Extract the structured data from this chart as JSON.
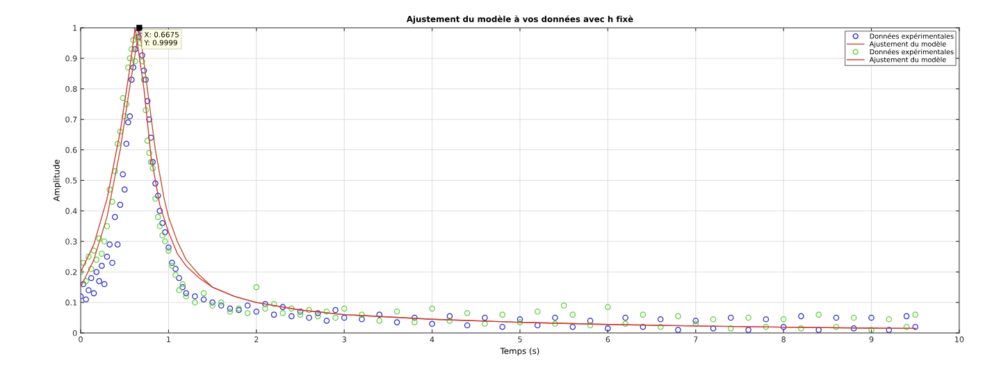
{
  "chart_data": {
    "type": "scatter",
    "title": "Ajustement du modèle à vos données avec h fixè",
    "xlabel": "Temps (s)",
    "ylabel": "Amplitude",
    "xlim": [
      0,
      10
    ],
    "ylim": [
      0,
      1
    ],
    "xticks": [
      0,
      1,
      2,
      3,
      4,
      5,
      6,
      7,
      8,
      9,
      10
    ],
    "yticks": [
      0,
      0.1,
      0.2,
      0.3,
      0.4,
      0.5,
      0.6,
      0.7,
      0.8,
      0.9,
      1
    ],
    "grid": true,
    "legend": "top right",
    "annotations": [
      {
        "text": "X: 0.6675\nY: 0.9999",
        "x": 0.6675,
        "y": 0.9999
      }
    ],
    "series": [
      {
        "name": "Données expérimentales",
        "marker": "circle",
        "color": "#2a2ad0",
        "x": [
          0.0,
          0.03,
          0.06,
          0.09,
          0.12,
          0.15,
          0.18,
          0.21,
          0.24,
          0.27,
          0.3,
          0.33,
          0.36,
          0.39,
          0.42,
          0.45,
          0.48,
          0.5,
          0.52,
          0.54,
          0.56,
          0.58,
          0.6,
          0.62,
          0.64,
          0.66,
          0.68,
          0.7,
          0.72,
          0.74,
          0.76,
          0.78,
          0.8,
          0.82,
          0.85,
          0.88,
          0.9,
          0.93,
          0.96,
          1.0,
          1.04,
          1.08,
          1.12,
          1.16,
          1.2,
          1.3,
          1.4,
          1.5,
          1.6,
          1.7,
          1.8,
          1.9,
          2.0,
          2.1,
          2.2,
          2.3,
          2.4,
          2.5,
          2.6,
          2.7,
          2.8,
          2.9,
          3.0,
          3.2,
          3.4,
          3.6,
          3.8,
          4.0,
          4.2,
          4.4,
          4.6,
          4.8,
          5.0,
          5.2,
          5.4,
          5.6,
          5.8,
          6.0,
          6.2,
          6.4,
          6.6,
          6.8,
          7.0,
          7.2,
          7.4,
          7.6,
          7.8,
          8.0,
          8.2,
          8.4,
          8.6,
          8.8,
          9.0,
          9.2,
          9.4,
          9.5
        ],
        "values": [
          0.12,
          0.16,
          0.11,
          0.14,
          0.18,
          0.13,
          0.2,
          0.17,
          0.22,
          0.16,
          0.25,
          0.29,
          0.23,
          0.38,
          0.29,
          0.42,
          0.52,
          0.47,
          0.62,
          0.69,
          0.71,
          0.83,
          0.87,
          0.93,
          1.0,
          0.97,
          0.99,
          0.91,
          0.86,
          0.83,
          0.76,
          0.7,
          0.64,
          0.56,
          0.49,
          0.45,
          0.4,
          0.36,
          0.33,
          0.28,
          0.23,
          0.21,
          0.18,
          0.15,
          0.13,
          0.12,
          0.11,
          0.1,
          0.09,
          0.08,
          0.075,
          0.09,
          0.07,
          0.095,
          0.06,
          0.085,
          0.055,
          0.07,
          0.05,
          0.065,
          0.04,
          0.075,
          0.05,
          0.045,
          0.06,
          0.035,
          0.05,
          0.03,
          0.055,
          0.025,
          0.05,
          0.02,
          0.045,
          0.025,
          0.05,
          0.02,
          0.04,
          0.015,
          0.05,
          0.02,
          0.045,
          0.01,
          0.04,
          0.015,
          0.05,
          0.01,
          0.045,
          0.02,
          0.055,
          0.01,
          0.05,
          0.015,
          0.05,
          0.01,
          0.055,
          0.02
        ]
      },
      {
        "name": "Ajustement du modèle",
        "type": "line",
        "marker": "none",
        "color": "#c0502e",
        "x": [
          0,
          0.15,
          0.3,
          0.45,
          0.55,
          0.6675,
          0.75,
          0.85,
          0.95,
          1.0,
          1.1,
          1.2,
          1.35,
          1.5,
          1.75,
          2,
          2.5,
          3,
          4,
          5,
          6,
          7,
          8,
          9,
          9.5
        ],
        "values": [
          0.15,
          0.24,
          0.38,
          0.6,
          0.79,
          1.0,
          0.82,
          0.6,
          0.44,
          0.38,
          0.3,
          0.24,
          0.19,
          0.15,
          0.12,
          0.1,
          0.075,
          0.06,
          0.045,
          0.035,
          0.028,
          0.023,
          0.019,
          0.016,
          0.015
        ]
      },
      {
        "name": "Données expérimentales",
        "marker": "circle",
        "color": "#5ed23c",
        "x": [
          0.0,
          0.03,
          0.06,
          0.09,
          0.12,
          0.15,
          0.18,
          0.21,
          0.24,
          0.27,
          0.3,
          0.33,
          0.36,
          0.39,
          0.42,
          0.45,
          0.48,
          0.5,
          0.52,
          0.54,
          0.56,
          0.58,
          0.6,
          0.62,
          0.64,
          0.68,
          0.7,
          0.72,
          0.74,
          0.76,
          0.78,
          0.8,
          0.82,
          0.85,
          0.88,
          0.9,
          0.93,
          0.96,
          1.0,
          1.04,
          1.08,
          1.12,
          1.16,
          1.2,
          1.3,
          1.4,
          1.5,
          1.6,
          1.7,
          1.8,
          1.9,
          2.0,
          2.1,
          2.2,
          2.3,
          2.4,
          2.5,
          2.6,
          2.7,
          2.8,
          2.9,
          3.0,
          3.2,
          3.4,
          3.6,
          3.8,
          4.0,
          4.2,
          4.4,
          4.6,
          4.8,
          5.0,
          5.2,
          5.4,
          5.5,
          5.6,
          5.8,
          6.0,
          6.2,
          6.4,
          6.6,
          6.8,
          7.0,
          7.2,
          7.4,
          7.6,
          7.8,
          8.0,
          8.2,
          8.4,
          8.6,
          8.8,
          9.0,
          9.2,
          9.4,
          9.5
        ],
        "values": [
          0.2,
          0.23,
          0.17,
          0.25,
          0.21,
          0.27,
          0.24,
          0.31,
          0.26,
          0.3,
          0.35,
          0.47,
          0.43,
          0.53,
          0.62,
          0.66,
          0.77,
          0.71,
          0.75,
          0.87,
          0.9,
          0.93,
          0.96,
          0.89,
          0.97,
          0.95,
          0.89,
          0.83,
          0.73,
          0.63,
          0.59,
          0.56,
          0.54,
          0.44,
          0.38,
          0.35,
          0.32,
          0.3,
          0.27,
          0.22,
          0.19,
          0.14,
          0.16,
          0.12,
          0.1,
          0.13,
          0.09,
          0.1,
          0.07,
          0.08,
          0.065,
          0.15,
          0.08,
          0.095,
          0.065,
          0.08,
          0.06,
          0.075,
          0.055,
          0.07,
          0.05,
          0.08,
          0.06,
          0.04,
          0.07,
          0.035,
          0.08,
          0.04,
          0.065,
          0.03,
          0.06,
          0.035,
          0.07,
          0.03,
          0.09,
          0.06,
          0.025,
          0.085,
          0.03,
          0.06,
          0.02,
          0.055,
          0.03,
          0.045,
          0.015,
          0.05,
          0.02,
          0.045,
          0.015,
          0.06,
          0.02,
          0.05,
          0.01,
          0.045,
          0.02,
          0.06
        ]
      },
      {
        "name": "Ajustement du modèle",
        "type": "line",
        "marker": "none",
        "color": "#d03a30",
        "x": [
          0,
          0.15,
          0.3,
          0.45,
          0.55,
          0.62,
          0.72,
          0.8,
          0.9,
          1.0,
          1.1,
          1.2,
          1.35,
          1.5,
          1.75,
          2,
          2.5,
          3,
          4,
          5,
          6,
          7,
          8,
          9,
          9.5
        ],
        "values": [
          0.2,
          0.29,
          0.44,
          0.66,
          0.85,
          1.0,
          0.8,
          0.58,
          0.42,
          0.33,
          0.26,
          0.22,
          0.18,
          0.15,
          0.12,
          0.1,
          0.075,
          0.06,
          0.045,
          0.035,
          0.028,
          0.023,
          0.019,
          0.016,
          0.015
        ]
      }
    ]
  }
}
